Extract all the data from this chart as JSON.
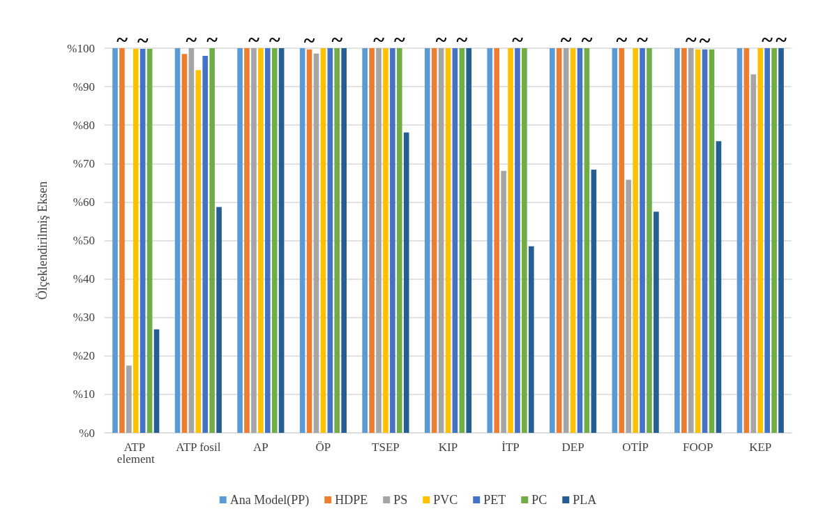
{
  "chart_data": {
    "type": "bar",
    "ylabel": "Ölçeklendirilmiş Eksen",
    "categories": [
      "ATP element",
      "ATP fosil",
      "AP",
      "ÖP",
      "TSEP",
      "KIP",
      "İTP",
      "DEP",
      "OTİP",
      "FOOP",
      "KEP"
    ],
    "series": [
      {
        "name": "Ana Model(PP)",
        "color": "#5b9bd5",
        "values": [
          100,
          100,
          100,
          100,
          100,
          100,
          100,
          100,
          100,
          100,
          100
        ]
      },
      {
        "name": "HDPE",
        "color": "#ed7d31",
        "values": [
          100,
          98.5,
          100,
          99.7,
          100,
          100,
          100,
          100,
          100,
          100,
          100
        ],
        "value_labels": [
          "~",
          null,
          null,
          "~",
          null,
          null,
          null,
          null,
          "~",
          null,
          null
        ]
      },
      {
        "name": "PS",
        "color": "#a5a5a5",
        "values": [
          17.5,
          100,
          100,
          98.6,
          100,
          100,
          68.1,
          100,
          65.8,
          100,
          93.2
        ],
        "value_labels": [
          null,
          "~",
          "~",
          null,
          "~",
          "~",
          null,
          "~",
          null,
          "~",
          null
        ]
      },
      {
        "name": "PVC",
        "color": "#ffc000",
        "values": [
          99.8,
          94.3,
          100,
          100,
          100,
          100,
          100,
          100,
          100,
          99.7,
          100
        ]
      },
      {
        "name": "PET",
        "color": "#4472c4",
        "values": [
          99.8,
          98,
          100,
          100,
          100,
          100,
          100,
          100,
          100,
          99.7,
          100
        ],
        "value_labels": [
          "~",
          null,
          null,
          null,
          null,
          null,
          "~",
          null,
          "~",
          "~",
          "~"
        ]
      },
      {
        "name": "PC",
        "color": "#70ad47",
        "values": [
          99.8,
          100,
          100,
          100,
          100,
          100,
          100,
          100,
          100,
          99.7,
          100
        ],
        "value_labels": [
          null,
          "~",
          "~",
          "~",
          "~",
          "~",
          null,
          "~",
          null,
          null,
          null
        ]
      },
      {
        "name": "PLA",
        "color": "#255e91",
        "values": [
          26.9,
          58.7,
          100,
          100,
          78.1,
          100,
          48.5,
          68.4,
          57.5,
          75.8,
          100
        ],
        "value_labels": [
          null,
          null,
          null,
          null,
          null,
          null,
          null,
          null,
          null,
          null,
          "~"
        ]
      }
    ],
    "ylim": [
      0,
      100
    ],
    "yticks": [
      {
        "value": 0,
        "label": "%0"
      },
      {
        "value": 10,
        "label": "%10"
      },
      {
        "value": 20,
        "label": "%20"
      },
      {
        "value": 30,
        "label": "%30"
      },
      {
        "value": 40,
        "label": "%40"
      },
      {
        "value": 50,
        "label": "%50"
      },
      {
        "value": 60,
        "label": "%60"
      },
      {
        "value": 70,
        "label": "%70"
      },
      {
        "value": 80,
        "label": "%80"
      },
      {
        "value": 90,
        "label": "%90"
      },
      {
        "value": 100,
        "label": "%100"
      }
    ],
    "grid": "y",
    "legend": "bottom"
  }
}
